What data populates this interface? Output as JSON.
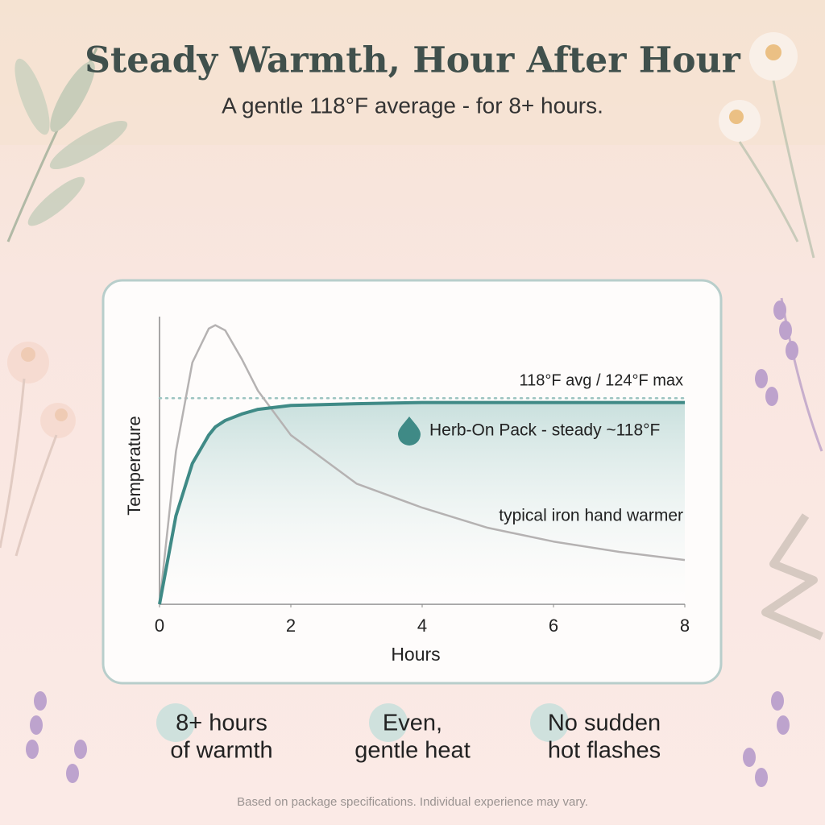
{
  "chart_data": {
    "type": "line",
    "title": "Steady Warmth, Hour After Hour",
    "subtitle": "A gentle 118°F average - for 8+ hours.",
    "x_label": "Hours",
    "y_label": "Temperature",
    "x": [
      0,
      0.25,
      0.5,
      0.75,
      0.85,
      1,
      1.25,
      1.5,
      2,
      3,
      4,
      5,
      6,
      7,
      8
    ],
    "series": [
      {
        "name": "Herb-On Pack - steady ~118°F",
        "color": "#3f8a86",
        "values": [
          70,
          90.6,
          102.8,
          109.4,
          111.3,
          112.8,
          114.3,
          115.4,
          116.3,
          116.7,
          117,
          117,
          117,
          117,
          117
        ]
      },
      {
        "name": "typical iron hand warmer",
        "color": "#b5b2b2",
        "values": [
          70,
          105.6,
          126.3,
          134.2,
          135,
          133.8,
          127.2,
          119.7,
          109.4,
          98.1,
          92.5,
          87.8,
          84.6,
          82.2,
          80.3
        ]
      }
    ],
    "reference_line": {
      "value": 118,
      "label": "118°F avg / 124°F max",
      "color": "#9cc4c0"
    },
    "xlim": [
      0,
      8
    ],
    "xticks": [
      0,
      2,
      4,
      6,
      8
    ],
    "ylim": [
      70,
      137
    ]
  },
  "features": [
    [
      "8+ hours",
      "of warmth"
    ],
    [
      "Even,",
      "gentle heat"
    ],
    [
      "No sudden",
      "hot flashes"
    ]
  ],
  "footnote": "Based on package specifications. Individual experience may vary."
}
